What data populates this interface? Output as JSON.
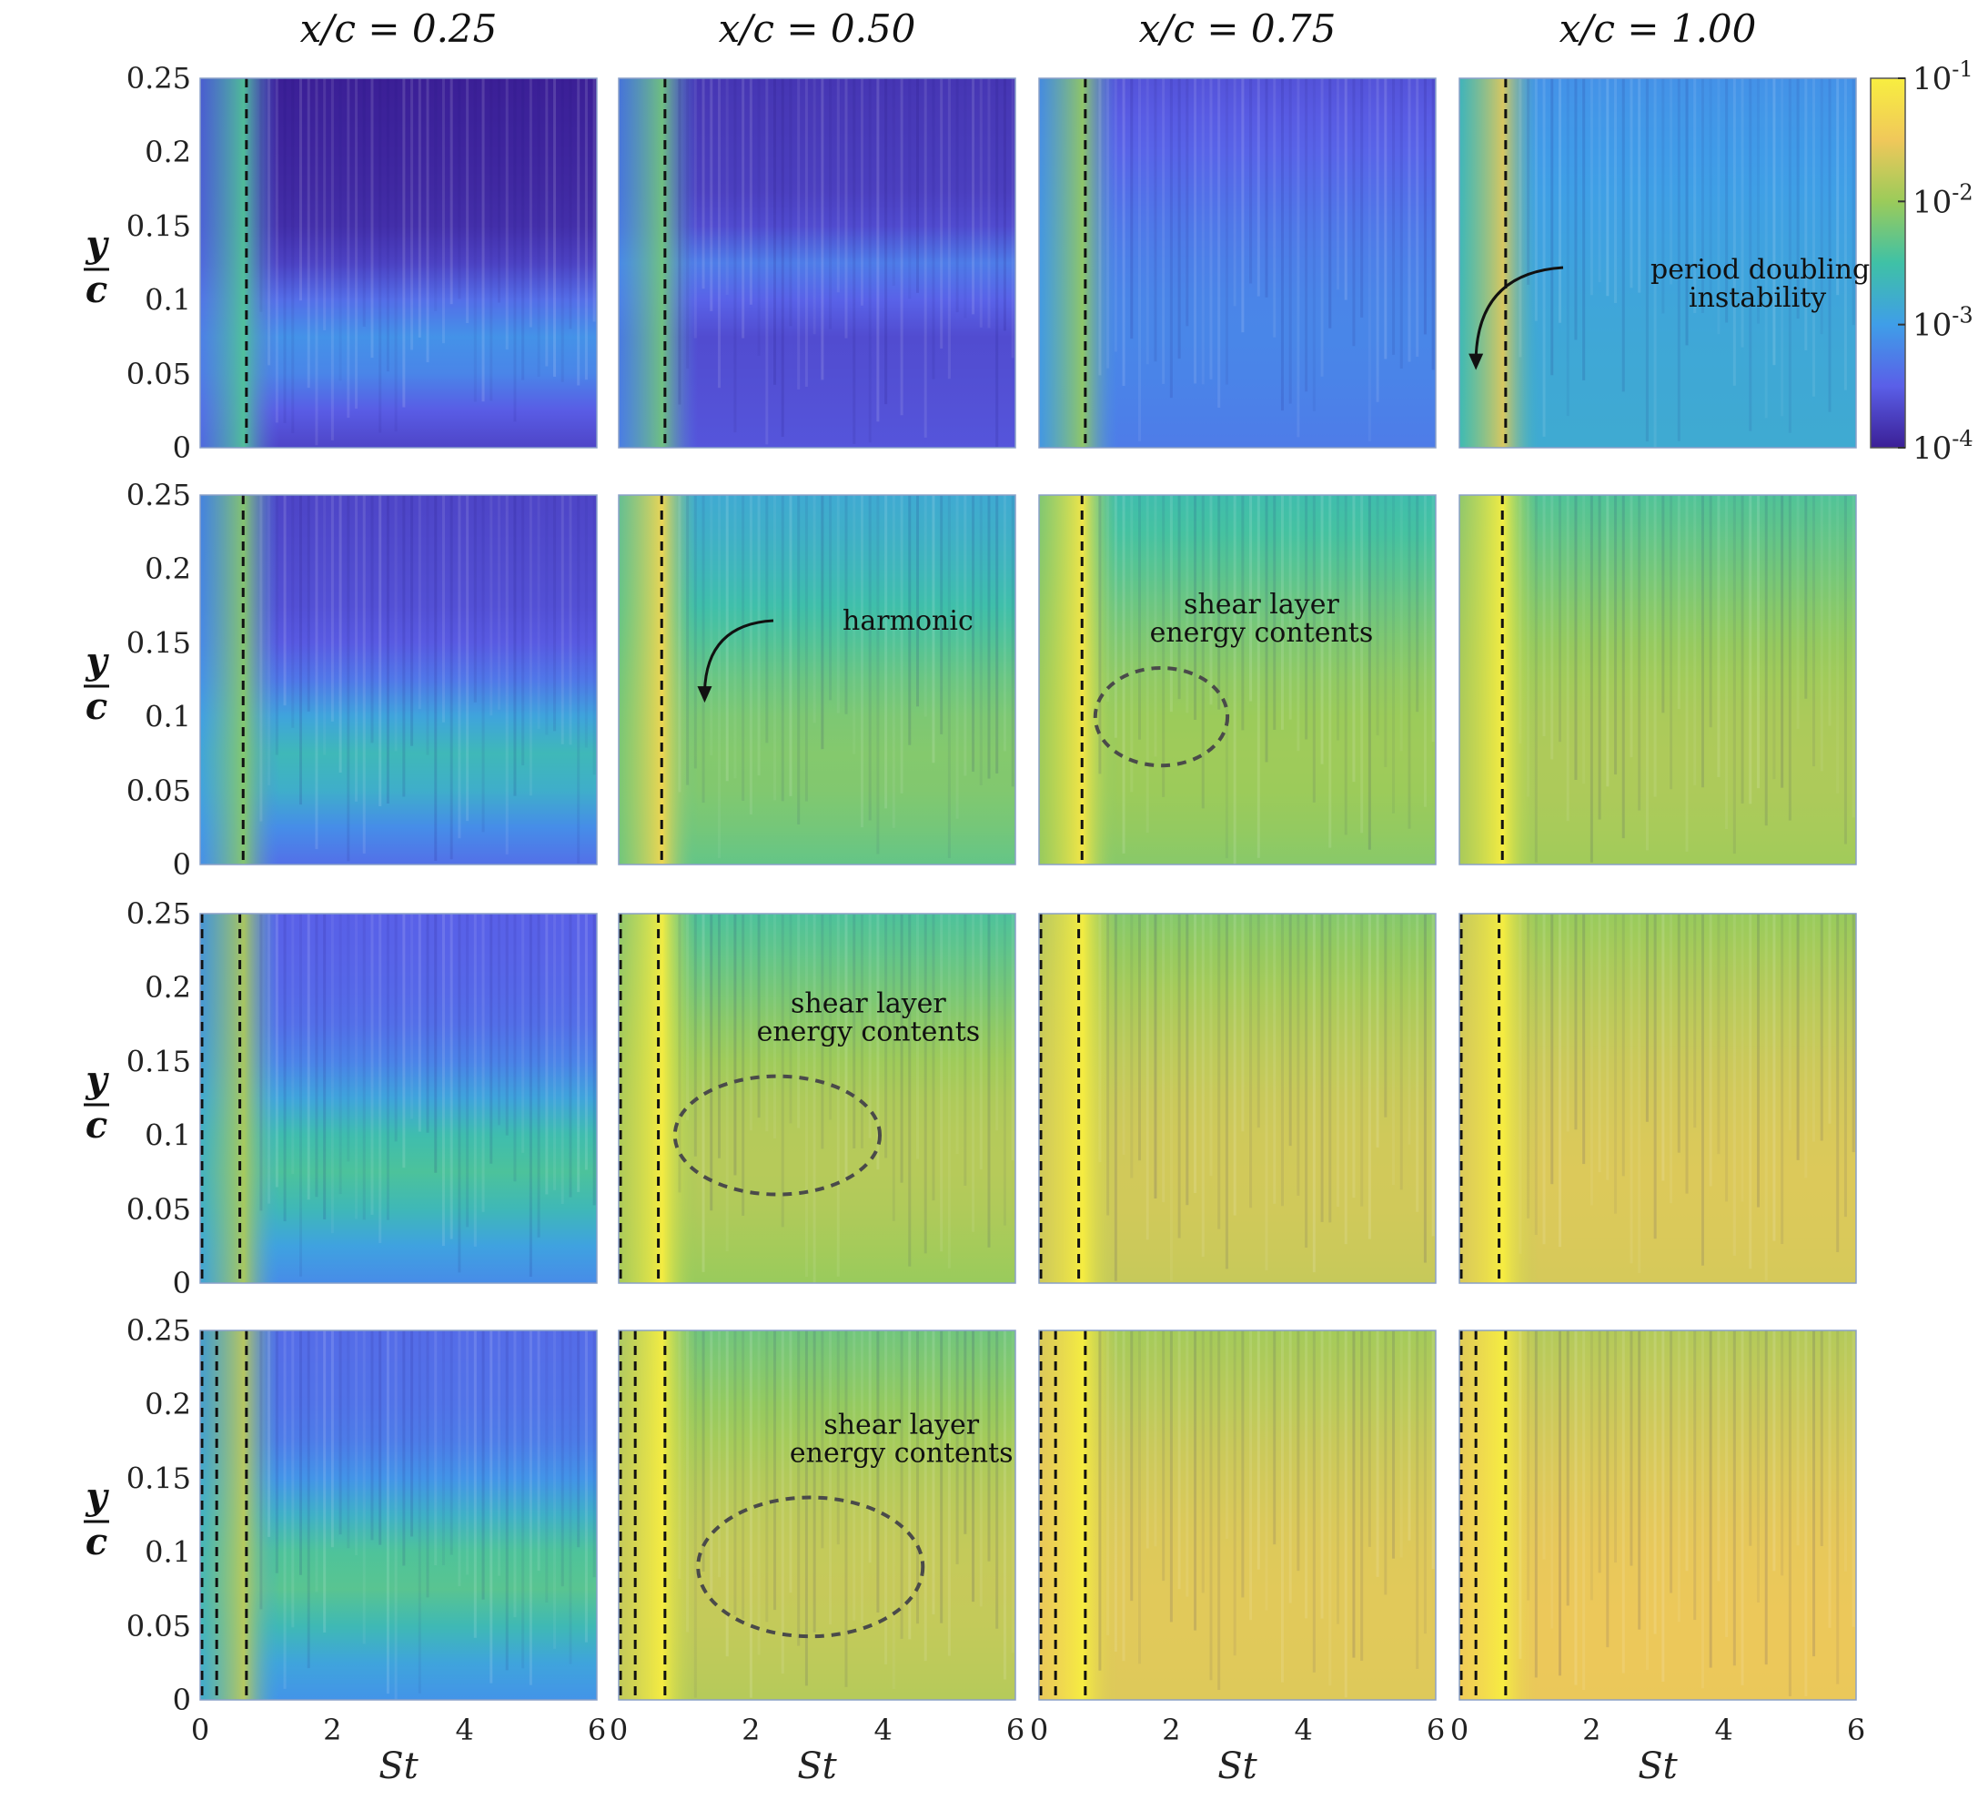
{
  "chart_data": {
    "type": "heatmap",
    "description_free": true,
    "column_titles": [
      "x/c = 0.25",
      "x/c = 0.50",
      "x/c = 0.75",
      "x/c = 1.00"
    ],
    "xlabel": "St",
    "ylabel_num": "y",
    "ylabel_den": "c",
    "xlim": [
      0,
      6
    ],
    "ylim": [
      0,
      0.25
    ],
    "x_ticks": [
      "0",
      "2",
      "4",
      "6"
    ],
    "y_ticks": [
      "0",
      "0.05",
      "0.1",
      "0.15",
      "0.2",
      "0.25"
    ],
    "colorbar": {
      "scale": "log",
      "range": [
        0.0001,
        0.1
      ],
      "ticks": [
        {
          "base": "10",
          "exp": "-1"
        },
        {
          "base": "10",
          "exp": "-2"
        },
        {
          "base": "10",
          "exp": "-3"
        },
        {
          "base": "10",
          "exp": "-4"
        }
      ],
      "colors": [
        "#3b1f96",
        "#5a5fe8",
        "#3f9ee8",
        "#3fc1a6",
        "#9bcb5a",
        "#f0c85a",
        "#f8ee40"
      ]
    },
    "rows": [
      {
        "panels": [
          {
            "level": 0.08,
            "band_y": 0.07,
            "band_w": 0.02,
            "band_strength": 0.25,
            "dashed_St": [
              0.7
            ]
          },
          {
            "level": 0.14,
            "band_y": 0.12,
            "band_w": 0.01,
            "band_strength": 0.15,
            "dashed_St": [
              0.7
            ]
          },
          {
            "level": 0.2,
            "band_y": 0.1,
            "band_w": 0.05,
            "band_strength": 0.1,
            "dashed_St": [
              0.7
            ]
          },
          {
            "level": 0.35,
            "band_y": 0.1,
            "band_w": 0.1,
            "band_strength": 0.05,
            "dashed_St": [
              0.7
            ]
          }
        ]
      },
      {
        "panels": [
          {
            "level": 0.18,
            "band_y": 0.072,
            "band_w": 0.022,
            "band_strength": 0.3,
            "dashed_St": [
              0.65
            ]
          },
          {
            "level": 0.45,
            "band_y": 0.08,
            "band_w": 0.05,
            "band_strength": 0.2,
            "dashed_St": [
              0.65
            ]
          },
          {
            "level": 0.52,
            "band_y": 0.09,
            "band_w": 0.06,
            "band_strength": 0.18,
            "dashed_St": [
              0.65
            ]
          },
          {
            "level": 0.55,
            "band_y": 0.09,
            "band_w": 0.07,
            "band_strength": 0.18,
            "dashed_St": [
              0.65
            ]
          }
        ]
      },
      {
        "panels": [
          {
            "level": 0.25,
            "band_y": 0.08,
            "band_w": 0.025,
            "band_strength": 0.3,
            "dashed_St": [
              0,
              0.6
            ]
          },
          {
            "level": 0.55,
            "band_y": 0.1,
            "band_w": 0.06,
            "band_strength": 0.2,
            "dashed_St": [
              0,
              0.6
            ]
          },
          {
            "level": 0.62,
            "band_y": 0.1,
            "band_w": 0.08,
            "band_strength": 0.18,
            "dashed_St": [
              0,
              0.6
            ]
          },
          {
            "level": 0.64,
            "band_y": 0.1,
            "band_w": 0.09,
            "band_strength": 0.18,
            "dashed_St": [
              0,
              0.6
            ]
          }
        ]
      },
      {
        "panels": [
          {
            "level": 0.28,
            "band_y": 0.085,
            "band_w": 0.025,
            "band_strength": 0.3,
            "dashed_St": [
              0,
              0.25,
              0.7
            ]
          },
          {
            "level": 0.6,
            "band_y": 0.1,
            "band_w": 0.07,
            "band_strength": 0.18,
            "dashed_St": [
              0,
              0.25,
              0.7
            ]
          },
          {
            "level": 0.68,
            "band_y": 0.1,
            "band_w": 0.09,
            "band_strength": 0.15,
            "dashed_St": [
              0,
              0.25,
              0.7
            ]
          },
          {
            "level": 0.7,
            "band_y": 0.1,
            "band_w": 0.1,
            "band_strength": 0.15,
            "dashed_St": [
              0,
              0.25,
              0.7
            ]
          }
        ]
      }
    ],
    "annotations": [
      {
        "row": 0,
        "col": 3,
        "lines": [
          "period doubling",
          "instability"
        ],
        "tip_St": 0.25,
        "tip_y": 0.055
      },
      {
        "row": 1,
        "col": 1,
        "lines": [
          "harmonic"
        ],
        "tip_St": 1.3,
        "tip_y": 0.112
      },
      {
        "row": 1,
        "col": 2,
        "lines": [
          "shear layer",
          "energy contents"
        ],
        "ellipse": {
          "St": 1.85,
          "y": 0.1,
          "rSt": 1.0,
          "ry": 0.033
        }
      },
      {
        "row": 2,
        "col": 1,
        "lines": [
          "shear layer",
          "energy contents"
        ],
        "ellipse": {
          "St": 2.4,
          "y": 0.1,
          "rSt": 1.55,
          "ry": 0.04
        }
      },
      {
        "row": 3,
        "col": 1,
        "lines": [
          "shear layer",
          "energy contents"
        ],
        "ellipse": {
          "St": 2.9,
          "y": 0.09,
          "rSt": 1.7,
          "ry": 0.047
        }
      }
    ]
  }
}
